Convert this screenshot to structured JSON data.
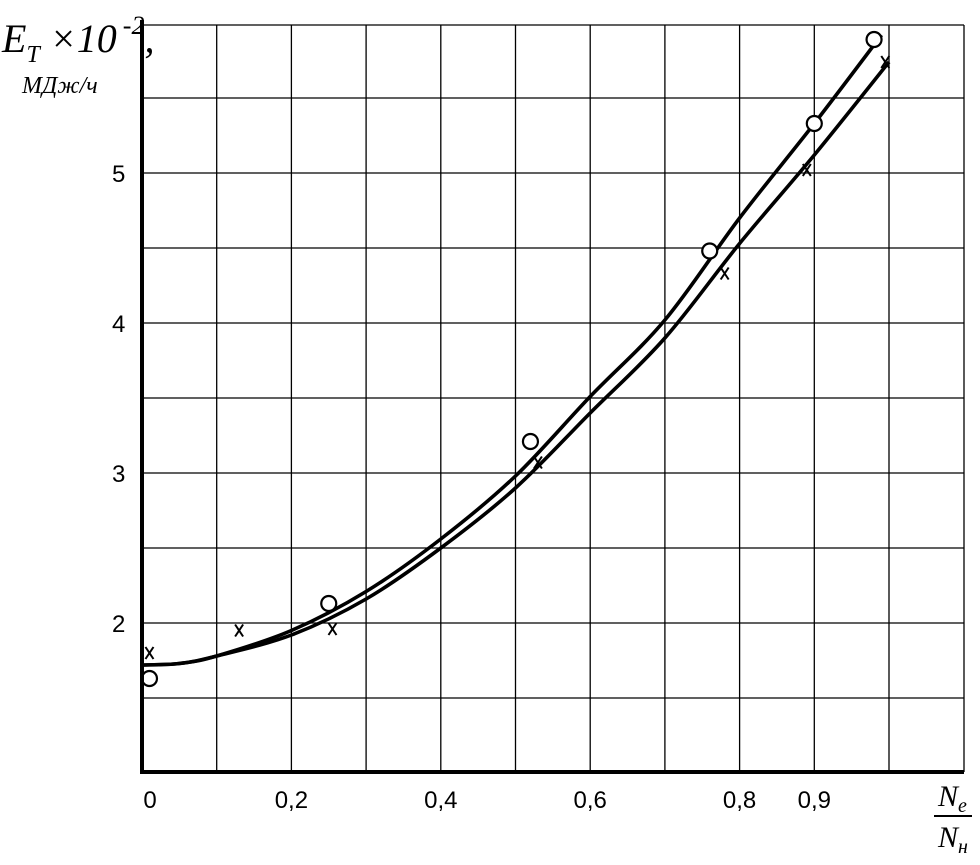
{
  "chart_data": {
    "type": "line",
    "ylabel": {
      "base": "E",
      "sub": "T",
      "mult": " ×10",
      "exp": "-2",
      "tail": ",",
      "unit": "МДж/ч"
    },
    "xlabel": {
      "numerator": "N",
      "numerator_sub": "e",
      "denominator": "N",
      "denominator_sub": "н"
    },
    "x_ticks": [
      {
        "value": 0,
        "label": "0"
      },
      {
        "value": 0.2,
        "label": "0,2"
      },
      {
        "value": 0.4,
        "label": "0,4"
      },
      {
        "value": 0.6,
        "label": "0,6"
      },
      {
        "value": 0.8,
        "label": "0,8"
      },
      {
        "value": 0.9,
        "label": "0,9"
      }
    ],
    "y_ticks": [
      {
        "value": 2,
        "label": "2"
      },
      {
        "value": 3,
        "label": "3"
      },
      {
        "value": 4,
        "label": "4"
      },
      {
        "value": 5,
        "label": "5"
      }
    ],
    "ylim": [
      1,
      6.1
    ],
    "grid": true,
    "series": [
      {
        "marker": "circle",
        "points": [
          {
            "x": 0.01,
            "y": 1.63
          },
          {
            "x": 0.25,
            "y": 2.13
          },
          {
            "x": 0.52,
            "y": 3.21
          },
          {
            "x": 0.76,
            "y": 4.48
          },
          {
            "x": 0.9,
            "y": 5.33
          },
          {
            "x": 0.98,
            "y": 5.89
          }
        ],
        "curve": [
          {
            "x": 0,
            "y": 1.72
          },
          {
            "x": 0.05,
            "y": 1.73
          },
          {
            "x": 0.1,
            "y": 1.78
          },
          {
            "x": 0.2,
            "y": 1.95
          },
          {
            "x": 0.3,
            "y": 2.21
          },
          {
            "x": 0.4,
            "y": 2.56
          },
          {
            "x": 0.5,
            "y": 2.98
          },
          {
            "x": 0.6,
            "y": 3.51
          },
          {
            "x": 0.7,
            "y": 4.02
          },
          {
            "x": 0.8,
            "y": 4.7
          },
          {
            "x": 0.9,
            "y": 5.33
          },
          {
            "x": 0.99,
            "y": 5.92
          }
        ]
      },
      {
        "marker": "x",
        "points": [
          {
            "x": 0.01,
            "y": 1.8
          },
          {
            "x": 0.13,
            "y": 1.95
          },
          {
            "x": 0.255,
            "y": 1.96
          },
          {
            "x": 0.53,
            "y": 3.07
          },
          {
            "x": 0.78,
            "y": 4.33
          },
          {
            "x": 0.89,
            "y": 5.02
          },
          {
            "x": 0.995,
            "y": 5.74
          }
        ],
        "curve": [
          {
            "x": 0,
            "y": 1.72
          },
          {
            "x": 0.05,
            "y": 1.73
          },
          {
            "x": 0.1,
            "y": 1.78
          },
          {
            "x": 0.2,
            "y": 1.92
          },
          {
            "x": 0.3,
            "y": 2.16
          },
          {
            "x": 0.4,
            "y": 2.5
          },
          {
            "x": 0.5,
            "y": 2.9
          },
          {
            "x": 0.6,
            "y": 3.4
          },
          {
            "x": 0.7,
            "y": 3.9
          },
          {
            "x": 0.8,
            "y": 4.53
          },
          {
            "x": 0.9,
            "y": 5.12
          },
          {
            "x": 1.0,
            "y": 5.74
          }
        ]
      }
    ]
  }
}
